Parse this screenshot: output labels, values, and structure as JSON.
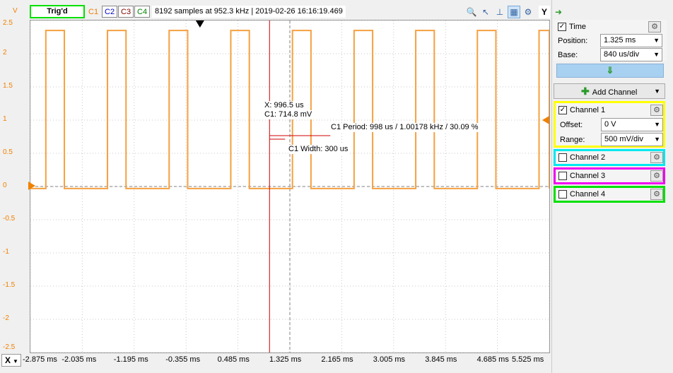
{
  "toolbar": {
    "trig_status": "Trig'd",
    "channels": [
      "C1",
      "C2",
      "C3",
      "C4"
    ],
    "info": "8192 samples at 952.3 kHz | 2019-02-26 16:16:19.469",
    "y_button": "Y",
    "unit": "V"
  },
  "plot": {
    "y_ticks": [
      "2.5",
      "2",
      "1.5",
      "1",
      "0.5",
      "0",
      "-0.5",
      "-1",
      "-1.5",
      "-2",
      "-2.5"
    ],
    "x_ticks": [
      "-2.875 ms",
      "-2.035 ms",
      "-1.195 ms",
      "-0.355 ms",
      "0.485 ms",
      "1.325 ms",
      "2.165 ms",
      "3.005 ms",
      "3.845 ms",
      "4.685 ms",
      "5.525 ms"
    ],
    "x_button": "X",
    "cursor_x": "X: 996.5 us",
    "cursor_c1": "C1: 714.8 mV",
    "period_label": "C1 Period: 998 us / 1.00178 kHz / 30.09 %",
    "width_label": "C1 Width: 300 us"
  },
  "chart_data": {
    "type": "line",
    "series": [
      {
        "name": "C1",
        "color": "#f5a040"
      }
    ],
    "period_ms": 0.998,
    "width_ms": 0.3,
    "high_v": 2.35,
    "low_v": -0.03,
    "xlim_ms": [
      -2.875,
      5.525
    ],
    "ylim": [
      -2.5,
      2.5
    ],
    "first_rise_ms": -2.625
  },
  "panel": {
    "time": {
      "label": "Time",
      "position_label": "Position:",
      "position_value": "1.325 ms",
      "base_label": "Base:",
      "base_value": "840 us/div"
    },
    "add_channel": "Add Channel",
    "channel1": {
      "label": "Channel 1",
      "offset_label": "Offset:",
      "offset_value": "0 V",
      "range_label": "Range:",
      "range_value": "500 mV/div",
      "border": "#ffff00"
    },
    "channel2": {
      "label": "Channel 2",
      "border": "#00e8f0"
    },
    "channel3": {
      "label": "Channel 3",
      "border": "#f000f0"
    },
    "channel4": {
      "label": "Channel 4",
      "border": "#00e000"
    }
  }
}
